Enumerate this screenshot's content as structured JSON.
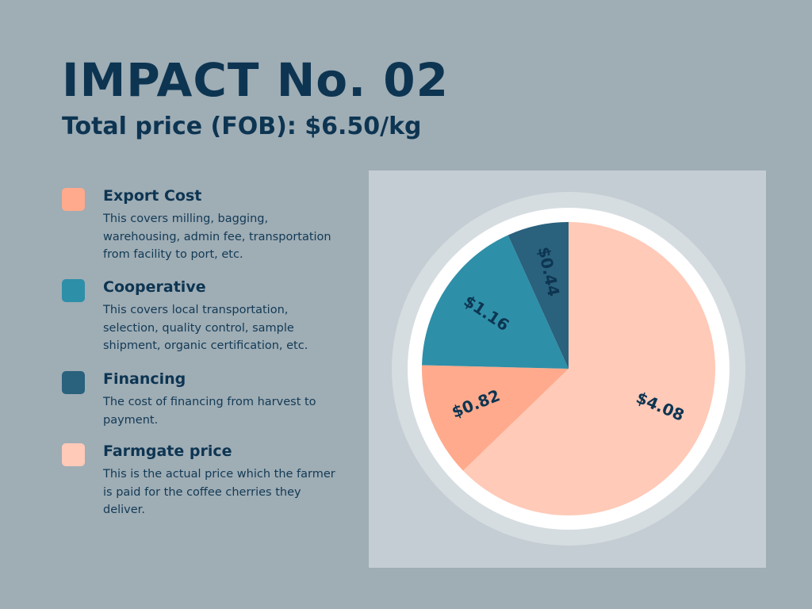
{
  "header": {
    "title": "IMPACT No. 02",
    "subtitle": "Total price (FOB): $6.50/kg"
  },
  "colors": {
    "background": "#9fadb5",
    "panel": "#c4cdd3",
    "ring_outer": "#d6dde1",
    "ring_inner": "#ffffff",
    "text": "#0d3552"
  },
  "legend": {
    "items": [
      {
        "title": "Export Cost",
        "color": "#ffaa8c",
        "description": "This covers milling, bagging, warehousing, admin fee, transportation from facility to port, etc."
      },
      {
        "title": "Cooperative",
        "color": "#2e8fa8",
        "description": "This covers local transportation, selection, quality control, sample shipment, organic certification, etc."
      },
      {
        "title": "Financing",
        "color": "#2a617d",
        "description": "The cost of financing from harvest to payment."
      },
      {
        "title": "Farmgate price",
        "color": "#ffcab8",
        "description": "This is the actual price which the farmer is paid for the coffee cherries they deliver."
      }
    ]
  },
  "chart_data": {
    "type": "pie",
    "title": "Total price (FOB): $6.50/kg",
    "total": 6.5,
    "start": "12 o'clock, clockwise",
    "slices": [
      {
        "name": "Farmgate price",
        "value": 4.08,
        "label": "$4.08",
        "color": "#ffcab8"
      },
      {
        "name": "Export Cost",
        "value": 0.82,
        "label": "$0.82",
        "color": "#ffaa8c"
      },
      {
        "name": "Cooperative",
        "value": 1.16,
        "label": "$1.16",
        "color": "#2e8fa8"
      },
      {
        "name": "Financing",
        "value": 0.44,
        "label": "$0.44",
        "color": "#2a617d"
      }
    ]
  }
}
